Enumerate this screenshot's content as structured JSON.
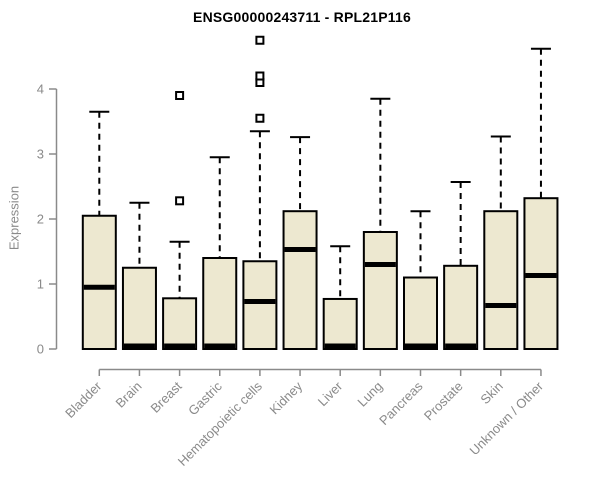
{
  "chart_data": {
    "type": "boxplot",
    "title": "ENSG00000243711 - RPL21P116",
    "ylabel": "Expression",
    "xlabel": "",
    "yticks": [
      0,
      1,
      2,
      3,
      4
    ],
    "ylim": [
      0,
      4.8
    ],
    "grid": false,
    "legend": null,
    "colors": {
      "box_fill": "#EDE8D0",
      "box_border": "#000000",
      "median": "#000000",
      "whisker": "#000000",
      "outlier_border": "#000000",
      "outlier_fill": "#ffffff",
      "axis": "#8a8a8a",
      "title": "#000000"
    },
    "categories": [
      "Bladder",
      "Brain",
      "Breast",
      "Gastric",
      "Hematopoietic cells",
      "Kidney",
      "Liver",
      "Lung",
      "Pancreas",
      "Prostate",
      "Skin",
      "Unknown / Other"
    ],
    "boxes": [
      {
        "label": "Bladder",
        "q1": 0,
        "median": 0.95,
        "q3": 2.05,
        "whisker_low": 0,
        "whisker_high": 3.65,
        "outliers": []
      },
      {
        "label": "Brain",
        "q1": 0,
        "median": 0,
        "q3": 1.25,
        "whisker_low": 0,
        "whisker_high": 2.25,
        "outliers": []
      },
      {
        "label": "Breast",
        "q1": 0,
        "median": 0,
        "q3": 0.78,
        "whisker_low": 0,
        "whisker_high": 1.65,
        "outliers": [
          2.28,
          3.9
        ]
      },
      {
        "label": "Gastric",
        "q1": 0,
        "median": 0,
        "q3": 1.4,
        "whisker_low": 0,
        "whisker_high": 2.95,
        "outliers": []
      },
      {
        "label": "Hematopoietic cells",
        "q1": 0,
        "median": 0.73,
        "q3": 1.35,
        "whisker_low": 0,
        "whisker_high": 3.35,
        "outliers": [
          3.55,
          4.1,
          4.2,
          4.75
        ]
      },
      {
        "label": "Kidney",
        "q1": 0,
        "median": 1.53,
        "q3": 2.12,
        "whisker_low": 0,
        "whisker_high": 3.26,
        "outliers": []
      },
      {
        "label": "Liver",
        "q1": 0,
        "median": 0,
        "q3": 0.77,
        "whisker_low": 0,
        "whisker_high": 1.58,
        "outliers": []
      },
      {
        "label": "Lung",
        "q1": 0,
        "median": 1.3,
        "q3": 1.8,
        "whisker_low": 0,
        "whisker_high": 3.85,
        "outliers": []
      },
      {
        "label": "Pancreas",
        "q1": 0,
        "median": 0,
        "q3": 1.1,
        "whisker_low": 0,
        "whisker_high": 2.12,
        "outliers": []
      },
      {
        "label": "Prostate",
        "q1": 0,
        "median": 0,
        "q3": 1.28,
        "whisker_low": 0,
        "whisker_high": 2.57,
        "outliers": []
      },
      {
        "label": "Skin",
        "q1": 0,
        "median": 0.67,
        "q3": 2.12,
        "whisker_low": 0,
        "whisker_high": 3.27,
        "outliers": []
      },
      {
        "label": "Unknown / Other",
        "q1": 0,
        "median": 1.13,
        "q3": 2.32,
        "whisker_low": 0,
        "whisker_high": 4.62,
        "outliers": []
      }
    ]
  }
}
